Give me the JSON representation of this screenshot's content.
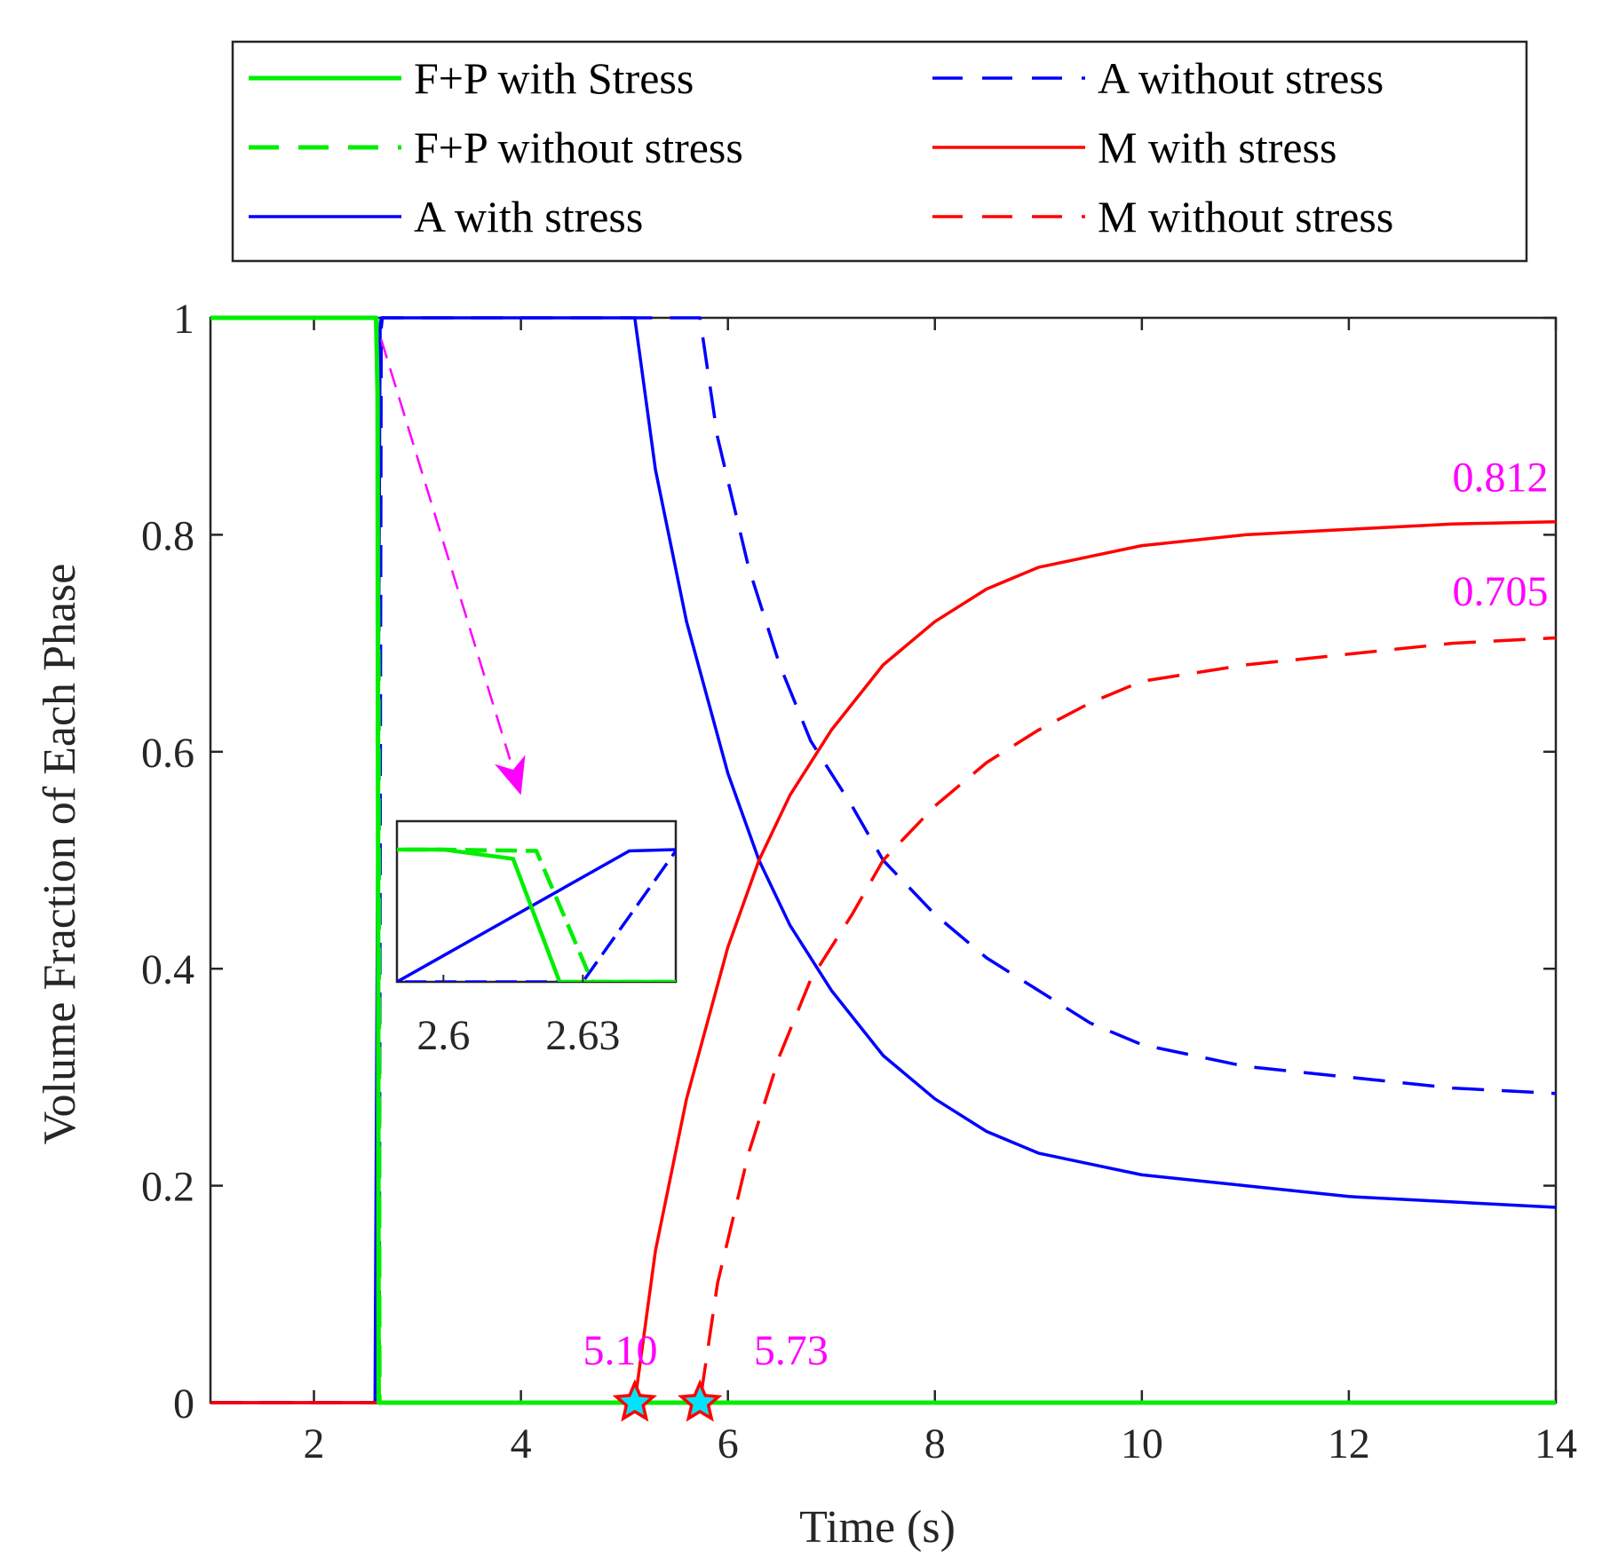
{
  "chart_data": {
    "type": "line",
    "xlabel": "Time (s)",
    "ylabel": "Volume Fraction of Each Phase",
    "xlim": [
      1,
      14
    ],
    "ylim": [
      0,
      1
    ],
    "xticks": [
      2,
      4,
      6,
      8,
      10,
      12,
      14
    ],
    "yticks": [
      0,
      0.2,
      0.4,
      0.6,
      0.8,
      1
    ],
    "xtick_labels": [
      "2",
      "4",
      "6",
      "8",
      "10",
      "12",
      "14"
    ],
    "ytick_labels": [
      "0",
      "0.2",
      "0.4",
      "0.6",
      "0.8",
      "1"
    ],
    "grid": false,
    "legend_position": "top (outside, above axes)",
    "series": [
      {
        "name": "F+P with Stress",
        "color": "#00ee00",
        "style": "solid",
        "x": [
          1.0,
          2.6,
          2.615,
          2.625,
          2.63,
          4.9,
          5.1,
          14.0
        ],
        "y": [
          1.0,
          1.0,
          0.93,
          0.0,
          0.0,
          0.0,
          0.0,
          0.0
        ]
      },
      {
        "name": "F+P without stress",
        "color": "#00ee00",
        "style": "dashed",
        "x": [
          1.0,
          2.6,
          2.62,
          2.632,
          2.64,
          14.0
        ],
        "y": [
          1.0,
          1.0,
          0.99,
          0.0,
          0.0,
          0.0
        ]
      },
      {
        "name": "A with stress",
        "color": "#0000ff",
        "style": "solid",
        "x": [
          1.0,
          2.59,
          2.64,
          2.65,
          5.1,
          5.3,
          5.6,
          6.0,
          6.3,
          6.6,
          7.0,
          7.5,
          8.0,
          8.5,
          9.0,
          9.5,
          10.0,
          11.0,
          12.0,
          13.0,
          14.0
        ],
        "y": [
          0.0,
          0.0,
          0.99,
          1.0,
          1.0,
          0.86,
          0.72,
          0.58,
          0.5,
          0.44,
          0.38,
          0.32,
          0.28,
          0.25,
          0.23,
          0.22,
          0.21,
          0.2,
          0.19,
          0.185,
          0.18
        ]
      },
      {
        "name": "A without stress",
        "color": "#0000ff",
        "style": "dashed",
        "x": [
          1.0,
          2.63,
          2.65,
          2.66,
          5.73,
          5.9,
          6.2,
          6.5,
          6.8,
          7.2,
          7.5,
          8.0,
          8.5,
          9.0,
          9.5,
          10.0,
          11.0,
          12.0,
          13.0,
          14.0
        ],
        "y": [
          0.0,
          0.0,
          0.99,
          1.0,
          1.0,
          0.89,
          0.77,
          0.68,
          0.61,
          0.55,
          0.5,
          0.45,
          0.41,
          0.38,
          0.35,
          0.33,
          0.31,
          0.3,
          0.29,
          0.285
        ]
      },
      {
        "name": "M with stress",
        "color": "#ff0000",
        "style": "solid",
        "x": [
          1.0,
          5.1,
          5.3,
          5.6,
          6.0,
          6.3,
          6.6,
          7.0,
          7.5,
          8.0,
          8.5,
          9.0,
          9.5,
          10.0,
          11.0,
          12.0,
          13.0,
          14.0
        ],
        "y": [
          0.0,
          0.0,
          0.14,
          0.28,
          0.42,
          0.5,
          0.56,
          0.62,
          0.68,
          0.72,
          0.75,
          0.77,
          0.78,
          0.79,
          0.8,
          0.805,
          0.81,
          0.812
        ]
      },
      {
        "name": "M without stress",
        "color": "#ff0000",
        "style": "dashed",
        "x": [
          1.0,
          5.73,
          5.9,
          6.2,
          6.5,
          6.8,
          7.2,
          7.5,
          8.0,
          8.5,
          9.0,
          9.5,
          10.0,
          11.0,
          12.0,
          13.0,
          14.0
        ],
        "y": [
          0.0,
          0.0,
          0.11,
          0.23,
          0.32,
          0.39,
          0.45,
          0.5,
          0.55,
          0.59,
          0.62,
          0.645,
          0.665,
          0.68,
          0.69,
          0.7,
          0.705
        ]
      }
    ],
    "annotations": [
      {
        "text": "0.812",
        "x": 13.0,
        "y": 0.84,
        "color": "#ff00ff"
      },
      {
        "text": "0.705",
        "x": 13.0,
        "y": 0.735,
        "color": "#ff00ff"
      },
      {
        "text": "5.10",
        "x": 4.6,
        "y": 0.035,
        "color": "#ff00ff"
      },
      {
        "text": "5.73",
        "x": 6.25,
        "y": 0.035,
        "color": "#ff00ff"
      }
    ],
    "markers": [
      {
        "shape": "star",
        "x": 5.1,
        "y": 0.0,
        "fill": "#00e5ff",
        "edge": "#ff0000"
      },
      {
        "shape": "star",
        "x": 5.73,
        "y": 0.0,
        "fill": "#00e5ff",
        "edge": "#ff0000"
      }
    ],
    "arrow": {
      "color": "#ff00ff",
      "style": "dashed",
      "from": [
        2.65,
        0.98
      ],
      "to": [
        4.0,
        0.56
      ]
    },
    "inset": {
      "xlim": [
        2.59,
        2.65
      ],
      "ylim": [
        0,
        1
      ],
      "xtick_labels": [
        "2.6",
        "2.63"
      ],
      "xtick_values": [
        2.6,
        2.63
      ]
    }
  }
}
